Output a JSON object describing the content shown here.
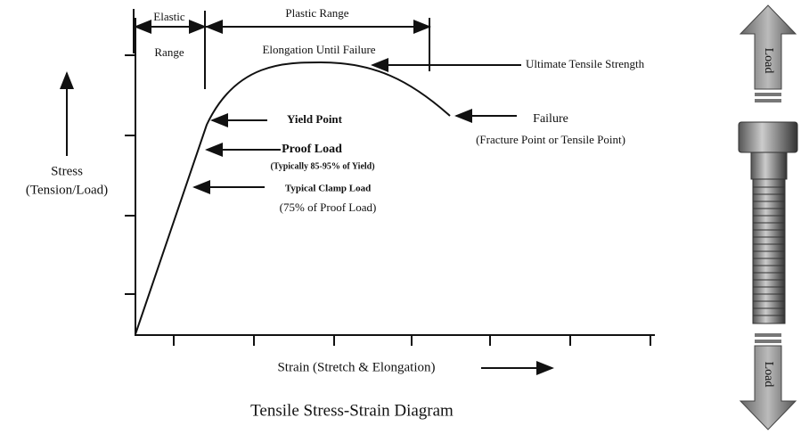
{
  "diagram": {
    "title": "Tensile Stress-Strain Diagram",
    "elastic_range": [
      "Elastic",
      "Range"
    ],
    "plastic_range": "Plastic Range",
    "elongation": "Elongation Until Failure",
    "ultimate": "Ultimate Tensile Strength",
    "yield_point": "Yield Point",
    "proof_load": {
      "label": "Proof Load",
      "note": "(Typically 85-95% of Yield)"
    },
    "clamp_load": {
      "label": "Typical Clamp Load",
      "note": "(75% of Proof Load)"
    },
    "failure": {
      "label": "Failure",
      "note": "(Fracture Point or Tensile Point)"
    },
    "y_axis": [
      "Stress",
      "(Tension/Load)"
    ],
    "x_axis": "Strain (Stretch & Elongation)",
    "load_top": "Load",
    "load_bottom": "Load"
  }
}
